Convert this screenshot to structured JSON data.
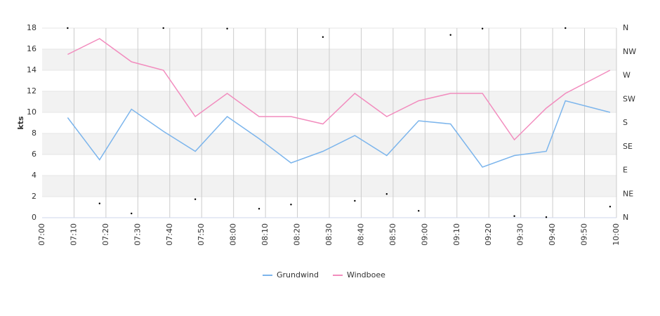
{
  "chart_data": {
    "type": "line",
    "y_label": "kts",
    "x": [
      "07:08",
      "07:18",
      "07:28",
      "07:38",
      "07:48",
      "07:58",
      "08:08",
      "08:18",
      "08:28",
      "08:38",
      "08:48",
      "08:58",
      "09:08",
      "09:18",
      "09:28",
      "09:38",
      "09:44",
      "09:58"
    ],
    "xlim": [
      "07:00",
      "10:00"
    ],
    "xticks": [
      "07:00",
      "07:10",
      "07:20",
      "07:30",
      "07:40",
      "07:50",
      "08:00",
      "08:10",
      "08:20",
      "08:30",
      "08:40",
      "08:50",
      "09:00",
      "09:10",
      "09:20",
      "09:30",
      "09:40",
      "09:50",
      "10:00"
    ],
    "ylim": [
      0,
      18
    ],
    "yticks": [
      0,
      2,
      4,
      6,
      8,
      10,
      12,
      14,
      16,
      18
    ],
    "y2lim": [
      0,
      360
    ],
    "y2ticks": [
      {
        "value": 0,
        "label": "N"
      },
      {
        "value": 45,
        "label": "NE"
      },
      {
        "value": 90,
        "label": "E"
      },
      {
        "value": 135,
        "label": "SE"
      },
      {
        "value": 180,
        "label": "S"
      },
      {
        "value": 225,
        "label": "SW"
      },
      {
        "value": 270,
        "label": "W"
      },
      {
        "value": 315,
        "label": "NW"
      },
      {
        "value": 360,
        "label": "N"
      }
    ],
    "grid": true,
    "legend": "bottom",
    "series": [
      {
        "name": "Grundwind",
        "color": "#7cb5ec",
        "values": [
          9.5,
          5.5,
          10.3,
          8.2,
          6.3,
          9.6,
          7.5,
          5.2,
          6.3,
          7.8,
          5.9,
          9.2,
          8.9,
          4.8,
          5.9,
          6.3,
          11.1,
          10.0
        ]
      },
      {
        "name": "Windboee",
        "color": "#f28cbe",
        "values": [
          15.5,
          17.0,
          14.8,
          14.0,
          9.6,
          11.8,
          9.6,
          9.6,
          8.9,
          11.8,
          9.6,
          11.1,
          11.8,
          11.8,
          7.4,
          10.4,
          11.8,
          14.0
        ]
      }
    ],
    "direction": {
      "axis": "y2",
      "type": "scatter",
      "color": "#000000",
      "values": [
        360,
        27,
        8,
        360,
        35,
        359,
        17,
        25,
        343,
        32,
        45,
        13,
        347,
        359,
        3,
        1,
        360,
        21
      ]
    }
  }
}
